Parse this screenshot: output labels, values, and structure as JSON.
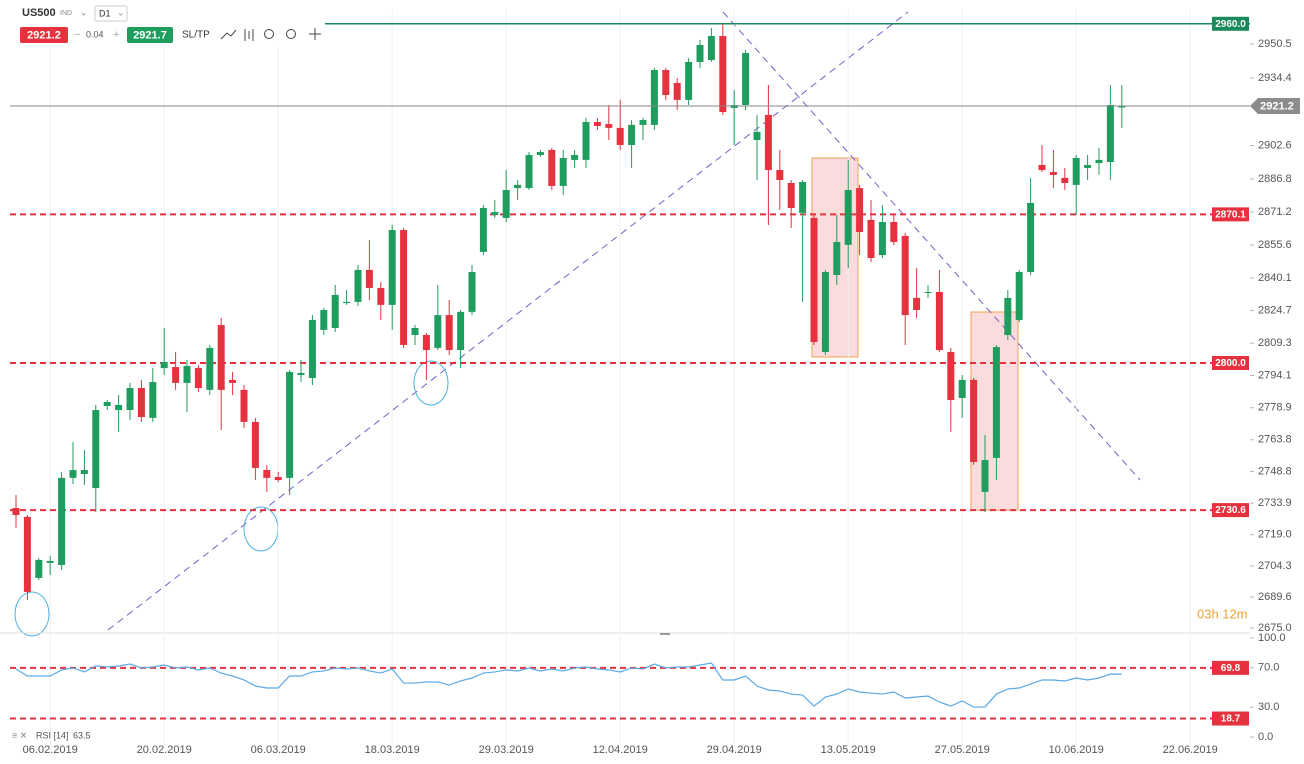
{
  "toolbar": {
    "symbol": "US500",
    "market": "IND",
    "timeframe": "D1",
    "spread": 0.04,
    "ask": 2921.7,
    "sltp": "SL/TP",
    "countdown": "03h 12m"
  },
  "chart_data": [
    {
      "type": "candlestick",
      "up_color": "#1f9d5f",
      "down_color": "#e5323e",
      "grid": true,
      "categories": [
        null,
        null,
        null,
        "06.02.2019",
        null,
        null,
        null,
        null,
        null,
        null,
        null,
        null,
        null,
        "20.02.2019",
        null,
        null,
        null,
        null,
        null,
        null,
        null,
        null,
        null,
        "06.03.2019",
        null,
        null,
        null,
        null,
        null,
        null,
        null,
        null,
        null,
        "18.03.2019",
        null,
        null,
        null,
        null,
        null,
        null,
        null,
        null,
        null,
        "29.03.2019",
        null,
        null,
        null,
        null,
        null,
        null,
        null,
        null,
        null,
        "12.04.2019",
        null,
        null,
        null,
        null,
        null,
        null,
        null,
        null,
        null,
        "29.04.2019",
        null,
        null,
        null,
        null,
        null,
        null,
        null,
        null,
        null,
        "13.05.2019",
        null,
        null,
        null,
        null,
        null,
        null,
        null,
        null,
        null,
        "27.05.2019",
        null,
        null,
        null,
        null,
        null,
        null,
        null,
        null,
        null,
        "10.06.2019",
        null,
        null,
        null,
        null,
        null,
        null,
        null,
        null,
        null,
        "22.06.2019",
        null,
        null,
        null,
        null,
        null
      ],
      "open": [
        2731.6,
        2727.4,
        2698.6,
        2705.7,
        2704.7,
        2745.8,
        2747.6,
        2741.0,
        2779.7,
        2777.8,
        2777.8,
        2788.2,
        2774.1,
        2797.6,
        2798.1,
        2790.6,
        2797.6,
        2787.3,
        2817.9,
        2792.0,
        2787.3,
        2772.2,
        2749.5,
        2746.2,
        2745.8,
        2794.3,
        2792.9,
        2815.6,
        2816.5,
        2828.3,
        2828.8,
        2843.9,
        2835.4,
        2827.4,
        2862.7,
        2813.2,
        2813.2,
        2807.1,
        2822.6,
        2806.1,
        2824.1,
        2852.4,
        2869.8,
        2868.4,
        2882.5,
        2882.5,
        2898.1,
        2900.5,
        2883.5,
        2895.8,
        2895.8,
        2913.7,
        2912.7,
        2910.9,
        2902.8,
        2912.3,
        2912.3,
        2938.2,
        2932.1,
        2924.1,
        2942.0,
        2942.9,
        2954.2,
        2920.3,
        2921.7,
        2905.2,
        2917.0,
        2891.0,
        2884.9,
        2870.8,
        2868.4,
        2805.2,
        2841.5,
        2855.7,
        2882.5,
        2867.5,
        2850.9,
        2866.5,
        2859.9,
        2830.7,
        2833.0,
        2833.5,
        2805.2,
        2783.5,
        2792.0,
        2739.2,
        2755.2,
        2813.2,
        2820.3,
        2842.9,
        2893.4,
        2890.1,
        2887.3,
        2884.0,
        2892.0,
        2894.3,
        2894.8,
        2920.5,
        null,
        null,
        null,
        null,
        null,
        null,
        null,
        null,
        null,
        null,
        null
      ],
      "high": [
        2737.7,
        2728.3,
        2708.0,
        2709.0,
        2748.6,
        2762.7,
        2759.0,
        2780.2,
        2782.5,
        2784.9,
        2790.6,
        2792.0,
        2797.6,
        2816.5,
        2805.2,
        2801.4,
        2799.1,
        2808.5,
        2821.2,
        2795.8,
        2789.6,
        2774.1,
        2751.9,
        2748.6,
        2796.7,
        2801.4,
        2822.6,
        2825.9,
        2836.8,
        2834.4,
        2846.2,
        2858.0,
        2838.2,
        2865.1,
        2863.7,
        2817.9,
        2814.2,
        2836.8,
        2829.7,
        2825.0,
        2846.2,
        2874.5,
        2876.9,
        2891.0,
        2886.3,
        2899.5,
        2900.5,
        2901.4,
        2900.5,
        2900.5,
        2915.6,
        2915.6,
        2921.7,
        2924.1,
        2914.6,
        2915.6,
        2939.2,
        2939.2,
        2934.4,
        2943.9,
        2952.4,
        2958.0,
        2959.9,
        2928.8,
        2947.6,
        2917.0,
        2931.1,
        2900.5,
        2886.3,
        2886.3,
        2869.8,
        2843.9,
        2869.8,
        2895.8,
        2884.0,
        2876.9,
        2874.5,
        2869.8,
        2861.3,
        2844.8,
        2836.8,
        2843.9,
        2807.1,
        2794.3,
        2792.9,
        2766.0,
        2808.5,
        2834.4,
        2843.9,
        2887.3,
        2902.8,
        2900.5,
        2892.0,
        2898.1,
        2898.1,
        2901.4,
        2931.1,
        2931.1,
        null,
        null,
        null,
        null,
        null,
        null,
        null,
        null,
        null,
        null,
        null
      ],
      "low": [
        2722.2,
        2688.2,
        2697.6,
        2700.0,
        2702.4,
        2742.9,
        2742.5,
        2729.7,
        2777.8,
        2767.5,
        2773.1,
        2772.2,
        2772.2,
        2794.3,
        2787.3,
        2776.9,
        2786.3,
        2784.9,
        2768.4,
        2784.9,
        2769.3,
        2744.8,
        2739.2,
        2743.9,
        2737.7,
        2791.0,
        2789.6,
        2813.2,
        2814.6,
        2827.4,
        2826.9,
        2829.7,
        2820.3,
        2815.6,
        2807.1,
        2808.5,
        2792.0,
        2806.1,
        2803.8,
        2797.6,
        2822.6,
        2850.9,
        2868.4,
        2866.5,
        2876.9,
        2881.6,
        2897.2,
        2881.6,
        2879.2,
        2892.0,
        2892.0,
        2909.9,
        2905.2,
        2900.5,
        2892.0,
        2905.2,
        2909.9,
        2924.1,
        2919.3,
        2921.7,
        2939.2,
        2942.0,
        2917.0,
        2902.8,
        2919.3,
        2886.3,
        2865.1,
        2872.2,
        2863.7,
        2828.8,
        2808.5,
        2803.8,
        2836.8,
        2844.8,
        2850.9,
        2847.6,
        2849.5,
        2855.7,
        2808.5,
        2821.2,
        2830.7,
        2805.2,
        2767.5,
        2774.1,
        2751.9,
        2729.7,
        2744.8,
        2810.8,
        2819.3,
        2841.5,
        2890.1,
        2882.5,
        2881.6,
        2869.8,
        2886.3,
        2888.7,
        2886.3,
        2910.9,
        null,
        null,
        null,
        null,
        null,
        null,
        null,
        null,
        null,
        null,
        null
      ],
      "close": [
        2728.3,
        2692.0,
        2707.1,
        2706.6,
        2745.8,
        2749.5,
        2749.5,
        2777.8,
        2781.6,
        2780.2,
        2788.2,
        2774.5,
        2791.0,
        2800.5,
        2790.6,
        2798.6,
        2788.2,
        2807.1,
        2787.3,
        2790.6,
        2772.2,
        2750.5,
        2745.8,
        2744.8,
        2795.8,
        2795.3,
        2820.3,
        2825.0,
        2832.1,
        2828.8,
        2843.9,
        2835.4,
        2827.4,
        2862.7,
        2808.5,
        2816.5,
        2806.1,
        2822.6,
        2806.1,
        2824.1,
        2842.9,
        2873.1,
        2871.2,
        2881.6,
        2884.0,
        2898.1,
        2899.5,
        2883.5,
        2896.7,
        2898.1,
        2913.7,
        2911.8,
        2910.9,
        2902.8,
        2912.3,
        2914.6,
        2938.2,
        2926.4,
        2924.1,
        2942.0,
        2950.0,
        2954.2,
        2918.4,
        2921.7,
        2946.2,
        2909.0,
        2891.0,
        2886.3,
        2873.1,
        2885.4,
        2809.9,
        2842.9,
        2857.1,
        2881.6,
        2861.8,
        2849.5,
        2866.5,
        2857.1,
        2822.6,
        2825.0,
        2833.5,
        2806.1,
        2782.5,
        2792.0,
        2753.3,
        2754.2,
        2807.5,
        2830.7,
        2842.9,
        2875.5,
        2891.0,
        2888.7,
        2884.9,
        2896.7,
        2893.4,
        2895.8,
        2921.7,
        2921.2,
        null,
        null,
        null,
        null,
        null,
        null,
        null,
        null,
        null,
        null,
        null
      ],
      "ylim": [
        2673.1,
        2966.5
      ],
      "yticks": [
        2950.5,
        2934.4,
        2902.6,
        2886.8,
        2871.2,
        2855.6,
        2840.1,
        2824.7,
        2809.3,
        2794.1,
        2778.9,
        2763.8,
        2748.8,
        2733.9,
        {
          "value": 2719,
          "label": "2719.0"
        },
        2704.3,
        2689.6,
        {
          "value": 2675,
          "label": "2675.0"
        }
      ],
      "current_price": 2921.2,
      "levels": [
        {
          "value": 2960,
          "label": "2960.0",
          "color": "#1a8a5a",
          "style": "solid"
        },
        {
          "value": 2870.1,
          "color": "#e5323e",
          "style": "dashed"
        },
        {
          "value": 2800,
          "label": "2800.0",
          "color": "#e5323e",
          "style": "dashed"
        },
        {
          "value": 2730.6,
          "color": "#e5323e",
          "style": "dashed"
        }
      ]
    },
    {
      "type": "line",
      "label": "RSI [14]",
      "color": "#5aa9e6",
      "values": [
        68.7,
        61.6,
        61.6,
        61.6,
        67.7,
        69.7,
        65.7,
        71.7,
        70.7,
        71.7,
        73.7,
        69.7,
        70.7,
        72.7,
        69.7,
        70.7,
        67.7,
        69.7,
        64.6,
        61.6,
        57.6,
        51.5,
        49.5,
        49.5,
        61.6,
        61.6,
        65.7,
        66.7,
        69.7,
        68.7,
        69.7,
        66.7,
        64.6,
        68.7,
        54.5,
        54.5,
        55.6,
        55.6,
        52.5,
        56.6,
        59.6,
        64.6,
        65.7,
        67.7,
        66.7,
        69.7,
        66.7,
        68.7,
        66.7,
        69.7,
        70.7,
        68.7,
        67.7,
        65.7,
        69.7,
        68.7,
        73.7,
        69.7,
        70.7,
        70.7,
        72.7,
        74.7,
        57.6,
        57.6,
        61.6,
        51.5,
        47.5,
        46.5,
        43.4,
        42.4,
        31.3,
        40.4,
        43.4,
        48.5,
        45.5,
        44.4,
        43.4,
        45.5,
        39.4,
        40.4,
        41.4,
        35.4,
        31.3,
        36.4,
        30.3,
        30.3,
        43.4,
        48.5,
        49.5,
        53.5,
        57.6,
        57.6,
        56.6,
        59.6,
        57.6,
        59.6,
        63.6,
        63.5
      ],
      "ylim": [
        -8,
        105
      ],
      "yticks": [
        {
          "value": 100,
          "label": "100.0"
        },
        {
          "value": 70,
          "label": "70.0"
        },
        {
          "value": 30,
          "label": "30.0"
        },
        {
          "value": 0,
          "label": "0.0"
        }
      ],
      "levels": [
        {
          "value": 69.8,
          "color": "#e5323e",
          "style": "dashed"
        },
        {
          "value": 18.7,
          "color": "#e5323e",
          "style": "dashed"
        }
      ]
    }
  ]
}
